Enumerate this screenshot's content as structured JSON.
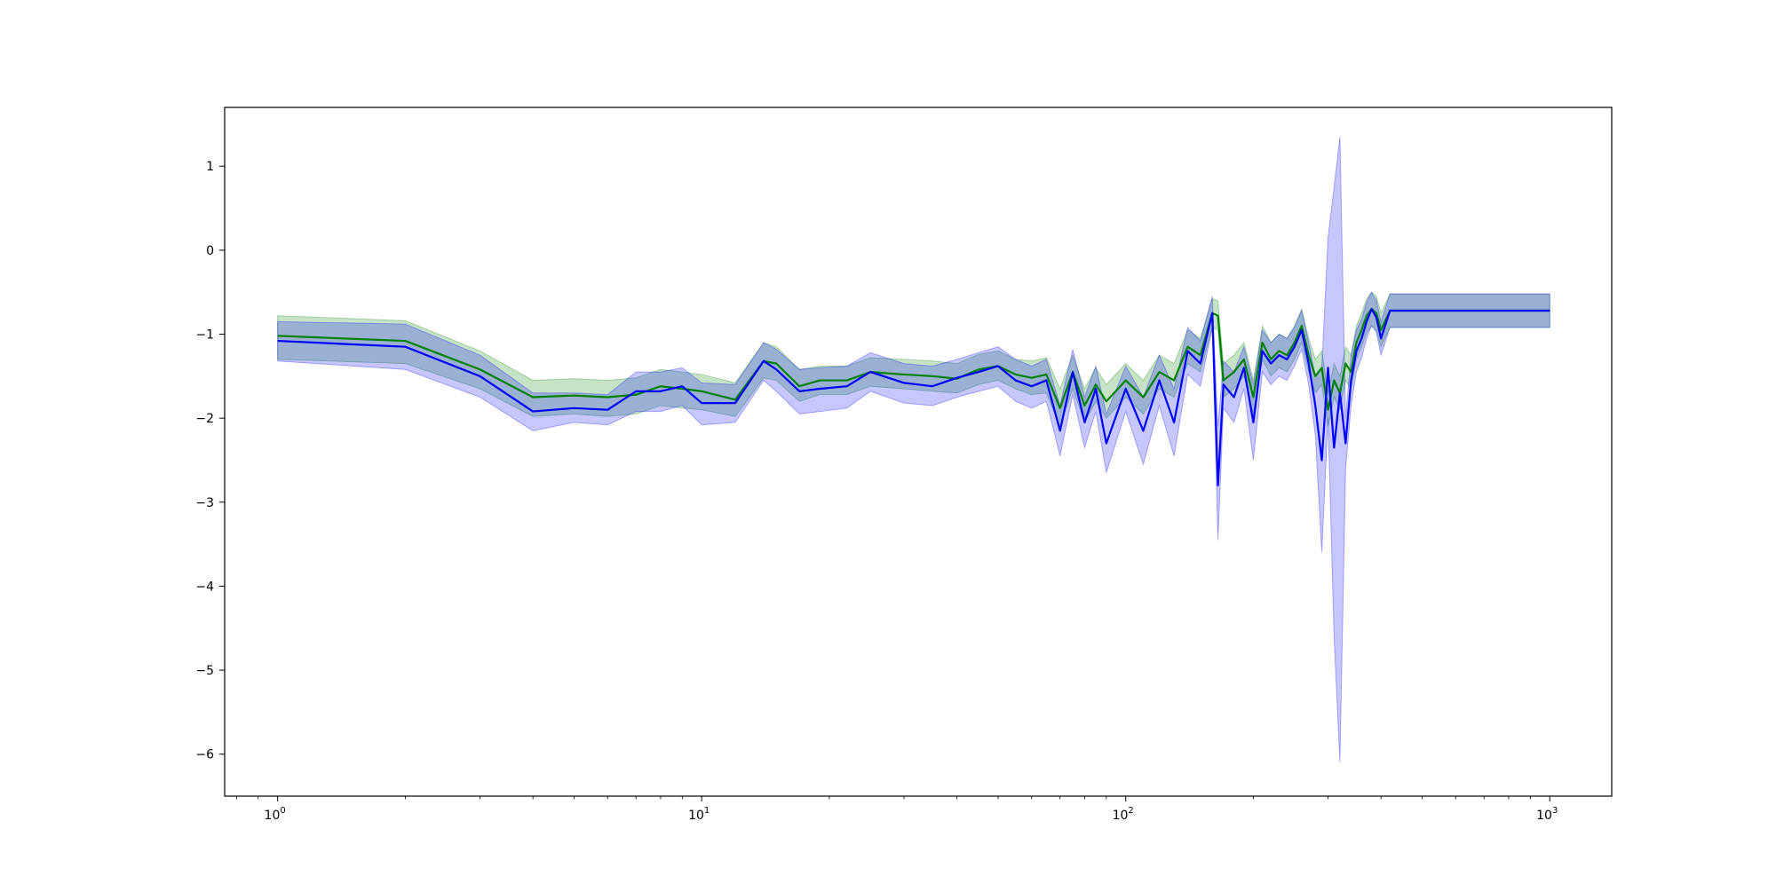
{
  "colors": {
    "green_line": "#008000",
    "green_band": "#008000",
    "blue_line": "#0000ff",
    "blue_band": "#0000ff",
    "axes": "#000000",
    "background": "#ffffff"
  },
  "chart_data": {
    "type": "line",
    "title": "",
    "xlabel": "",
    "ylabel": "",
    "x_scale": "log",
    "xlim": [
      0.75,
      1400
    ],
    "ylim": [
      -6.5,
      1.7
    ],
    "grid": false,
    "legend": "none",
    "y_ticks": [
      {
        "value": 1,
        "label": "1"
      },
      {
        "value": 0,
        "label": "0"
      },
      {
        "value": -1,
        "label": "−1"
      },
      {
        "value": -2,
        "label": "−2"
      },
      {
        "value": -3,
        "label": "−3"
      },
      {
        "value": -4,
        "label": "−4"
      },
      {
        "value": -5,
        "label": "−5"
      },
      {
        "value": -6,
        "label": "−6"
      }
    ],
    "x_ticks": [
      {
        "value": 1,
        "base": "10",
        "exp": "0"
      },
      {
        "value": 10,
        "base": "10",
        "exp": "1"
      },
      {
        "value": 100,
        "base": "10",
        "exp": "2"
      },
      {
        "value": 1000,
        "base": "10",
        "exp": "3"
      }
    ],
    "series": [
      {
        "color_key": "green",
        "x": [
          1,
          2,
          3,
          4,
          5,
          6,
          7,
          8,
          9,
          10,
          12,
          14,
          15,
          17,
          19,
          22,
          25,
          30,
          35,
          40,
          45,
          50,
          55,
          60,
          65,
          70,
          75,
          80,
          85,
          90,
          100,
          110,
          120,
          130,
          140,
          150,
          160,
          165,
          170,
          180,
          190,
          200,
          210,
          220,
          230,
          240,
          250,
          260,
          270,
          280,
          290,
          300,
          310,
          320,
          330,
          340,
          350,
          360,
          370,
          380,
          390,
          400,
          420,
          450,
          500,
          600,
          700,
          800,
          900,
          1000
        ],
        "y": [
          -1.02,
          -1.08,
          -1.42,
          -1.75,
          -1.73,
          -1.75,
          -1.72,
          -1.62,
          -1.65,
          -1.68,
          -1.78,
          -1.32,
          -1.35,
          -1.62,
          -1.55,
          -1.55,
          -1.45,
          -1.48,
          -1.5,
          -1.53,
          -1.42,
          -1.38,
          -1.48,
          -1.52,
          -1.48,
          -1.88,
          -1.45,
          -1.85,
          -1.6,
          -1.8,
          -1.55,
          -1.75,
          -1.45,
          -1.55,
          -1.15,
          -1.25,
          -0.75,
          -0.78,
          -1.55,
          -1.45,
          -1.3,
          -1.75,
          -1.1,
          -1.3,
          -1.2,
          -1.25,
          -1.1,
          -0.9,
          -1.25,
          -1.5,
          -1.4,
          -1.9,
          -1.55,
          -1.7,
          -1.35,
          -1.45,
          -1.1,
          -0.95,
          -0.78,
          -0.7,
          -0.75,
          -0.95,
          -0.72,
          -0.72,
          -0.72,
          -0.72,
          -0.72,
          -0.72,
          -0.72,
          -0.72
        ],
        "lower": [
          -1.3,
          -1.35,
          -1.65,
          -1.98,
          -1.95,
          -1.98,
          -1.95,
          -1.85,
          -1.88,
          -1.9,
          -1.98,
          -1.52,
          -1.55,
          -1.8,
          -1.72,
          -1.72,
          -1.62,
          -1.65,
          -1.68,
          -1.7,
          -1.6,
          -1.55,
          -1.65,
          -1.72,
          -1.7,
          -2.1,
          -1.65,
          -2.05,
          -1.8,
          -2.0,
          -1.75,
          -1.95,
          -1.65,
          -1.75,
          -1.35,
          -1.45,
          -0.92,
          -0.95,
          -1.75,
          -1.65,
          -1.5,
          -1.95,
          -1.3,
          -1.5,
          -1.4,
          -1.45,
          -1.3,
          -1.1,
          -1.45,
          -1.7,
          -1.6,
          -2.1,
          -1.75,
          -1.9,
          -1.55,
          -1.65,
          -1.3,
          -1.15,
          -0.98,
          -0.9,
          -0.95,
          -1.15,
          -0.92,
          -0.92,
          -0.92,
          -0.92,
          -0.92,
          -0.92,
          -0.92,
          -0.92
        ],
        "upper": [
          -0.78,
          -0.84,
          -1.2,
          -1.55,
          -1.53,
          -1.55,
          -1.52,
          -1.42,
          -1.45,
          -1.48,
          -1.58,
          -1.1,
          -1.15,
          -1.42,
          -1.38,
          -1.38,
          -1.28,
          -1.3,
          -1.32,
          -1.35,
          -1.24,
          -1.2,
          -1.3,
          -1.32,
          -1.28,
          -1.65,
          -1.25,
          -1.65,
          -1.4,
          -1.6,
          -1.35,
          -1.55,
          -1.25,
          -1.35,
          -0.95,
          -1.05,
          -0.58,
          -0.6,
          -1.35,
          -1.25,
          -1.1,
          -1.55,
          -0.9,
          -1.1,
          -1.0,
          -1.05,
          -0.9,
          -0.7,
          -1.05,
          -1.3,
          -1.2,
          -1.7,
          -1.35,
          -1.5,
          -1.15,
          -1.25,
          -0.9,
          -0.75,
          -0.58,
          -0.5,
          -0.55,
          -0.75,
          -0.52,
          -0.52,
          -0.52,
          -0.52,
          -0.52,
          -0.52,
          -0.52,
          -0.52
        ]
      },
      {
        "color_key": "blue",
        "x": [
          1,
          2,
          3,
          4,
          5,
          6,
          7,
          8,
          9,
          10,
          12,
          14,
          15,
          17,
          19,
          22,
          25,
          30,
          35,
          40,
          45,
          50,
          55,
          60,
          65,
          70,
          75,
          80,
          85,
          90,
          100,
          110,
          120,
          130,
          140,
          150,
          160,
          165,
          170,
          180,
          190,
          200,
          210,
          220,
          230,
          240,
          250,
          260,
          270,
          280,
          290,
          300,
          310,
          320,
          330,
          340,
          350,
          360,
          370,
          380,
          390,
          400,
          420,
          450,
          500,
          600,
          700,
          800,
          900,
          1000
        ],
        "y": [
          -1.08,
          -1.15,
          -1.5,
          -1.92,
          -1.88,
          -1.9,
          -1.68,
          -1.68,
          -1.62,
          -1.82,
          -1.82,
          -1.32,
          -1.42,
          -1.68,
          -1.65,
          -1.62,
          -1.45,
          -1.58,
          -1.62,
          -1.52,
          -1.45,
          -1.38,
          -1.55,
          -1.62,
          -1.55,
          -2.15,
          -1.45,
          -2.05,
          -1.65,
          -2.3,
          -1.65,
          -2.15,
          -1.55,
          -2.05,
          -1.2,
          -1.35,
          -0.75,
          -2.8,
          -1.6,
          -1.75,
          -1.4,
          -2.05,
          -1.2,
          -1.35,
          -1.25,
          -1.3,
          -1.15,
          -0.95,
          -1.35,
          -1.85,
          -2.5,
          -1.4,
          -2.35,
          -1.7,
          -2.3,
          -1.55,
          -1.2,
          -1.05,
          -0.85,
          -0.7,
          -0.8,
          -1.05,
          -0.72,
          -0.72,
          -0.72,
          -0.72,
          -0.72,
          -0.72,
          -0.72,
          -0.72
        ],
        "lower": [
          -1.32,
          -1.42,
          -1.75,
          -2.15,
          -2.05,
          -2.08,
          -1.92,
          -1.92,
          -1.85,
          -2.08,
          -2.05,
          -1.55,
          -1.68,
          -1.95,
          -1.92,
          -1.88,
          -1.68,
          -1.82,
          -1.85,
          -1.75,
          -1.68,
          -1.62,
          -1.8,
          -1.88,
          -1.8,
          -2.45,
          -1.72,
          -2.35,
          -1.92,
          -2.65,
          -1.92,
          -2.55,
          -1.85,
          -2.45,
          -1.48,
          -1.62,
          -0.92,
          -3.45,
          -1.88,
          -2.05,
          -1.65,
          -2.5,
          -1.45,
          -1.6,
          -1.5,
          -1.55,
          -1.38,
          -1.18,
          -1.6,
          -2.2,
          -3.6,
          -2.0,
          -4.6,
          -6.1,
          -2.6,
          -1.85,
          -1.45,
          -1.28,
          -1.05,
          -0.9,
          -0.98,
          -1.25,
          -0.92,
          -0.92,
          -0.92,
          -0.92,
          -0.92,
          -0.92,
          -0.92,
          -0.92
        ],
        "upper": [
          -0.85,
          -0.88,
          -1.25,
          -1.7,
          -1.7,
          -1.72,
          -1.45,
          -1.45,
          -1.4,
          -1.58,
          -1.6,
          -1.1,
          -1.18,
          -1.42,
          -1.4,
          -1.38,
          -1.22,
          -1.35,
          -1.38,
          -1.3,
          -1.22,
          -1.15,
          -1.3,
          -1.38,
          -1.3,
          -1.85,
          -1.18,
          -1.75,
          -1.38,
          -1.95,
          -1.38,
          -1.75,
          -1.25,
          -1.65,
          -0.92,
          -1.08,
          -0.55,
          -2.1,
          -1.32,
          -1.45,
          -1.15,
          -1.6,
          -0.95,
          -1.1,
          -1.0,
          -1.05,
          -0.92,
          -0.72,
          -1.1,
          -1.5,
          -1.4,
          0.15,
          0.75,
          1.35,
          -2.0,
          -1.25,
          -0.95,
          -0.82,
          -0.62,
          -0.5,
          -0.6,
          -0.85,
          -0.52,
          -0.52,
          -0.52,
          -0.52,
          -0.52,
          -0.52,
          -0.52,
          -0.52
        ]
      }
    ]
  }
}
